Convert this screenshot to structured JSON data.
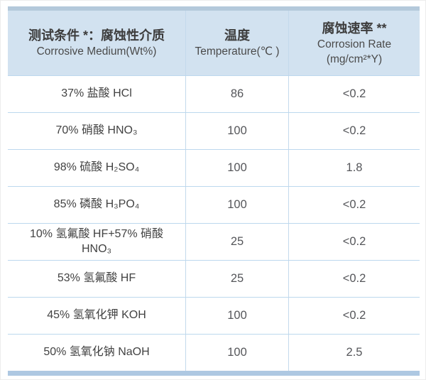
{
  "colors": {
    "header_bg": "#d2e2f0",
    "top_accent_bar": "#b4c9db",
    "bottom_accent_bar": "#aec8e2",
    "grid_line": "#bcd8ee",
    "column_divider": "#c3d9ec",
    "text": "#424242",
    "page_bg": "#ffffff"
  },
  "table": {
    "header": {
      "col1": {
        "line1": "测试条件 *：腐蚀性介质",
        "line2": "Corrosive Medium(Wt%)"
      },
      "col2": {
        "line1": "温度",
        "line2": "Temperature(℃ )"
      },
      "col3": {
        "line1": "腐蚀速率 **",
        "line2": "Corrosion Rate",
        "line3": "(mg/cm²*Y)"
      }
    },
    "rows": [
      {
        "medium": "37% 盐酸 HCl",
        "temperature": "86",
        "rate": "<0.2"
      },
      {
        "medium": "70% 硝酸 HNO₃",
        "temperature": "100",
        "rate": "<0.2"
      },
      {
        "medium": "98% 硫酸 H₂SO₄",
        "temperature": "100",
        "rate": "1.8"
      },
      {
        "medium": "85% 磷酸 H₃PO₄",
        "temperature": "100",
        "rate": "<0.2"
      },
      {
        "medium": "10% 氢氟酸 HF+57% 硝酸 HNO₃",
        "temperature": "25",
        "rate": "<0.2"
      },
      {
        "medium": "53% 氢氟酸 HF",
        "temperature": "25",
        "rate": "<0.2"
      },
      {
        "medium": "45% 氢氧化钾 KOH",
        "temperature": "100",
        "rate": "<0.2"
      },
      {
        "medium": "50% 氢氧化钠 NaOH",
        "temperature": "100",
        "rate": "2.5"
      }
    ]
  },
  "chart_data": {
    "type": "table",
    "columns": [
      "测试条件 *：腐蚀性介质 Corrosive Medium(Wt%)",
      "温度 Temperature(℃)",
      "腐蚀速率 ** Corrosion Rate (mg/cm²*Y)"
    ],
    "rows": [
      [
        "37% 盐酸 HCl",
        "86",
        "<0.2"
      ],
      [
        "70% 硝酸 HNO₃",
        "100",
        "<0.2"
      ],
      [
        "98% 硫酸 H₂SO₄",
        "100",
        "1.8"
      ],
      [
        "85% 磷酸 H₃PO₄",
        "100",
        "<0.2"
      ],
      [
        "10% 氢氟酸 HF+57% 硝酸 HNO₃",
        "25",
        "<0.2"
      ],
      [
        "53% 氢氟酸 HF",
        "25",
        "<0.2"
      ],
      [
        "45% 氢氧化钾 KOH",
        "100",
        "<0.2"
      ],
      [
        "50% 氢氧化钠 NaOH",
        "100",
        "2.5"
      ]
    ]
  }
}
